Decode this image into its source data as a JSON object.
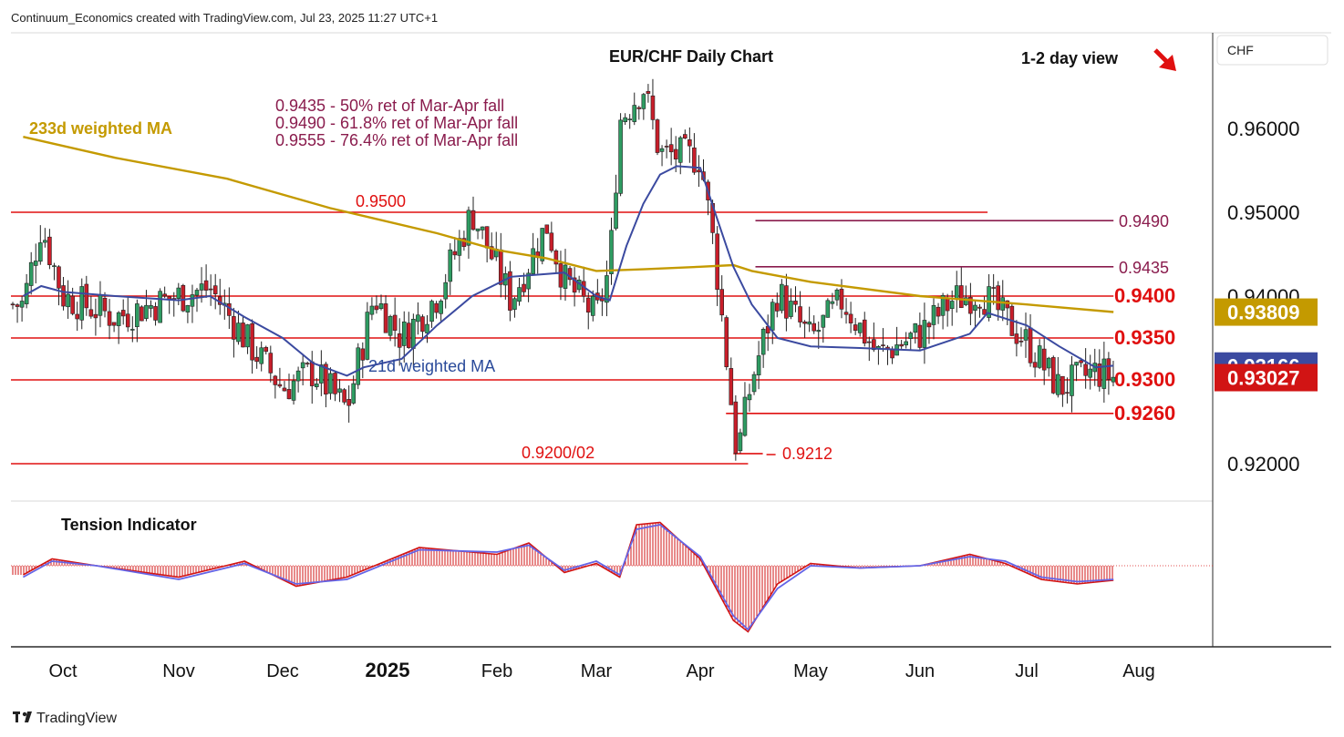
{
  "header": {
    "attribution": "Continuum_Economics created with TradingView.com, Jul 23, 2025 11:27 UTC+1",
    "title": "EUR/CHF Daily Chart",
    "view": "1-2 day view",
    "currency": "CHF"
  },
  "footer": {
    "logo_text": "TradingView"
  },
  "chart_data": [
    {
      "type": "candlestick",
      "title": "EUR/CHF Daily Chart",
      "ylabel": "CHF",
      "ylim": [
        0.9157,
        0.9698
      ],
      "y_ticks": [
        "0.96000",
        "0.95000",
        "0.94000",
        "0.92000"
      ],
      "x_ticks": [
        "Oct",
        "Nov",
        "Dec",
        "2025",
        "Feb",
        "Mar",
        "Apr",
        "May",
        "Jun",
        "Jul",
        "Aug"
      ],
      "grid": false,
      "price_badges": [
        {
          "name": "233d weighted MA",
          "value": "0.93809",
          "color": "#c49a00"
        },
        {
          "name": "21d weighted MA",
          "value": "0.93166",
          "color": "#3b4aa0"
        },
        {
          "name": "EUR/CHF",
          "value": "0.93027",
          "color": "#d11414"
        }
      ],
      "levels": [
        {
          "value": 0.95,
          "label": "0.9500",
          "color": "#e01010",
          "x_start": "Sep",
          "x_end": "Jun 20"
        },
        {
          "value": 0.94,
          "label": "0.9400",
          "color": "#e01010",
          "x_start": "Sep",
          "x_end": "Jul 25"
        },
        {
          "value": 0.935,
          "label": "0.9350",
          "color": "#e01010",
          "x_start": "Sep",
          "x_end": "Jul 25"
        },
        {
          "value": 0.93,
          "label": "0.9300",
          "color": "#e01010",
          "x_start": "Sep",
          "x_end": "Jul 25"
        },
        {
          "value": 0.926,
          "label": "0.9260",
          "color": "#e01010",
          "x_start": "Apr 8",
          "x_end": "Jul 25"
        },
        {
          "value": 0.92,
          "label": "0.9200/02",
          "color": "#e01010",
          "x_start": "Sep",
          "x_end": "Apr 14"
        },
        {
          "value": 0.9212,
          "label": "0.9212",
          "color": "#e01010",
          "x_start": "Apr 10",
          "x_end": "Apr 18"
        },
        {
          "value": 0.949,
          "label": "0.9490",
          "color": "#8a1c4d",
          "x_start": "Apr 16",
          "x_end": "Jul 25"
        },
        {
          "value": 0.9435,
          "label": "0.9435",
          "color": "#8a1c4d",
          "x_start": "Apr 16",
          "x_end": "Jul 25"
        }
      ],
      "annotations": [
        "0.9435 - 50% ret of Mar-Apr fall",
        "0.9490 - 61.8% ret of Mar-Apr fall",
        "0.9555 - 76.4% ret of Mar-Apr fall"
      ],
      "series": [
        {
          "name": "233d weighted MA",
          "color": "#c49a00",
          "points": [
            [
              "Sep 20",
              0.959
            ],
            [
              "Oct 15",
              0.9565
            ],
            [
              "Nov 15",
              0.954
            ],
            [
              "Dec 15",
              0.9505
            ],
            [
              "Jan 15",
              0.9475
            ],
            [
              "Feb 1",
              0.9455
            ],
            [
              "Feb 15",
              0.9445
            ],
            [
              "Mar 1",
              0.943
            ],
            [
              "Mar 15",
              0.9432
            ],
            [
              "Apr 1",
              0.9435
            ],
            [
              "Apr 10",
              0.9437
            ],
            [
              "Apr 15",
              0.943
            ],
            [
              "May 1",
              0.9417
            ],
            [
              "Jun 1",
              0.94
            ],
            [
              "Jul 1",
              0.939
            ],
            [
              "Jul 25",
              0.9381
            ]
          ]
        },
        {
          "name": "21d weighted MA",
          "color": "#3b4aa0",
          "points": [
            [
              "Sep 20",
              0.94
            ],
            [
              "Sep 25",
              0.9412
            ],
            [
              "Oct 1",
              0.9405
            ],
            [
              "Oct 15",
              0.94
            ],
            [
              "Nov 1",
              0.9395
            ],
            [
              "Nov 10",
              0.94
            ],
            [
              "Nov 20",
              0.9375
            ],
            [
              "Dec 1",
              0.935
            ],
            [
              "Dec 10",
              0.932
            ],
            [
              "Dec 20",
              0.9305
            ],
            [
              "Dec 25",
              0.9315
            ],
            [
              "Jan 5",
              0.9325
            ],
            [
              "Jan 15",
              0.9365
            ],
            [
              "Jan 25",
              0.94
            ],
            [
              "Feb 5",
              0.9423
            ],
            [
              "Feb 20",
              0.9428
            ],
            [
              "Mar 1",
              0.94
            ],
            [
              "Mar 5",
              0.9395
            ],
            [
              "Mar 10",
              0.946
            ],
            [
              "Mar 15",
              0.951
            ],
            [
              "Mar 20",
              0.9545
            ],
            [
              "Mar 25",
              0.9555
            ],
            [
              "Apr 1",
              0.9553
            ],
            [
              "Apr 5",
              0.95
            ],
            [
              "Apr 10",
              0.9435
            ],
            [
              "Apr 15",
              0.939
            ],
            [
              "Apr 22",
              0.935
            ],
            [
              "May 1",
              0.934
            ],
            [
              "May 15",
              0.9338
            ],
            [
              "Jun 1",
              0.9335
            ],
            [
              "Jun 15",
              0.9355
            ],
            [
              "Jun 20",
              0.938
            ],
            [
              "Jul 1",
              0.9365
            ],
            [
              "Jul 10",
              0.934
            ],
            [
              "Jul 20",
              0.9315
            ],
            [
              "Jul 25",
              0.9317
            ]
          ]
        },
        {
          "name": "EUR/CHF",
          "color": "#d11414",
          "points": [
            [
              "Sep 20",
              0.939
            ],
            [
              "Sep 25",
              0.9485
            ],
            [
              "Oct 1",
              0.94
            ],
            [
              "Oct 15",
              0.9375
            ],
            [
              "Nov 1",
              0.94
            ],
            [
              "Nov 10",
              0.941
            ],
            [
              "Nov 20",
              0.935
            ],
            [
              "Dec 1",
              0.929
            ],
            [
              "Dec 10",
              0.931
            ],
            [
              "Dec 20",
              0.9265
            ],
            [
              "Dec 28",
              0.94
            ],
            [
              "Jan 5",
              0.935
            ],
            [
              "Jan 15",
              0.94
            ],
            [
              "Jan 25",
              0.95
            ],
            [
              "Feb 5",
              0.9395
            ],
            [
              "Feb 15",
              0.9485
            ],
            [
              "Feb 20",
              0.9418
            ],
            [
              "Mar 1",
              0.9375
            ],
            [
              "Mar 5",
              0.9435
            ],
            [
              "Mar 8",
              0.961
            ],
            [
              "Mar 15",
              0.965
            ],
            [
              "Mar 20",
              0.957
            ],
            [
              "Apr 1",
              0.9565
            ],
            [
              "Apr 5",
              0.945
            ],
            [
              "Apr 8",
              0.933
            ],
            [
              "Apr 11",
              0.921
            ],
            [
              "Apr 15",
              0.93
            ],
            [
              "Apr 22",
              0.9405
            ],
            [
              "May 1",
              0.9348
            ],
            [
              "May 10",
              0.9395
            ],
            [
              "May 20",
              0.933
            ],
            [
              "Jun 1",
              0.9355
            ],
            [
              "Jun 10",
              0.9395
            ],
            [
              "Jun 18",
              0.9405
            ],
            [
              "Jul 1",
              0.9345
            ],
            [
              "Jul 10",
              0.929
            ],
            [
              "Jul 20",
              0.931
            ],
            [
              "Jul 25",
              0.9303
            ]
          ]
        }
      ]
    },
    {
      "type": "line",
      "title": "Tension Indicator",
      "series": [
        {
          "name": "Tension line",
          "color": "#6464e6",
          "points": [
            [
              "Sep 20",
              -0.25
            ],
            [
              "Sep 28",
              0.1
            ],
            [
              "Oct 10",
              0.0
            ],
            [
              "Nov 1",
              -0.3
            ],
            [
              "Nov 20",
              0.05
            ],
            [
              "Dec 5",
              -0.4
            ],
            [
              "Dec 20",
              -0.3
            ],
            [
              "Jan 10",
              0.35
            ],
            [
              "Feb 1",
              0.3
            ],
            [
              "Feb 10",
              0.45
            ],
            [
              "Feb 20",
              -0.1
            ],
            [
              "Mar 1",
              0.1
            ],
            [
              "Mar 8",
              -0.2
            ],
            [
              "Mar 13",
              0.8
            ],
            [
              "Mar 20",
              0.9
            ],
            [
              "Apr 1",
              0.2
            ],
            [
              "Apr 10",
              -1.1
            ],
            [
              "Apr 14",
              -1.4
            ],
            [
              "Apr 22",
              -0.5
            ],
            [
              "May 1",
              0.0
            ],
            [
              "May 15",
              -0.05
            ],
            [
              "Jun 1",
              0.0
            ],
            [
              "Jun 15",
              0.2
            ],
            [
              "Jun 25",
              0.1
            ],
            [
              "Jul 5",
              -0.25
            ],
            [
              "Jul 15",
              -0.35
            ],
            [
              "Jul 25",
              -0.3
            ]
          ]
        },
        {
          "name": "Tension histogram",
          "color": "#d11414",
          "points": [
            [
              "Sep 20",
              -0.2
            ],
            [
              "Sep 28",
              0.15
            ],
            [
              "Oct 10",
              0.0
            ],
            [
              "Nov 1",
              -0.25
            ],
            [
              "Nov 20",
              0.1
            ],
            [
              "Dec 5",
              -0.45
            ],
            [
              "Dec 20",
              -0.25
            ],
            [
              "Jan 10",
              0.4
            ],
            [
              "Feb 1",
              0.25
            ],
            [
              "Feb 10",
              0.5
            ],
            [
              "Feb 20",
              -0.15
            ],
            [
              "Mar 1",
              0.05
            ],
            [
              "Mar 8",
              -0.25
            ],
            [
              "Mar 13",
              0.9
            ],
            [
              "Mar 20",
              0.95
            ],
            [
              "Apr 1",
              0.15
            ],
            [
              "Apr 10",
              -1.2
            ],
            [
              "Apr 14",
              -1.45
            ],
            [
              "Apr 22",
              -0.4
            ],
            [
              "May 1",
              0.05
            ],
            [
              "May 15",
              -0.05
            ],
            [
              "Jun 1",
              0.0
            ],
            [
              "Jun 15",
              0.25
            ],
            [
              "Jun 25",
              0.05
            ],
            [
              "Jul 5",
              -0.3
            ],
            [
              "Jul 15",
              -0.4
            ],
            [
              "Jul 25",
              -0.32
            ]
          ]
        }
      ]
    }
  ]
}
